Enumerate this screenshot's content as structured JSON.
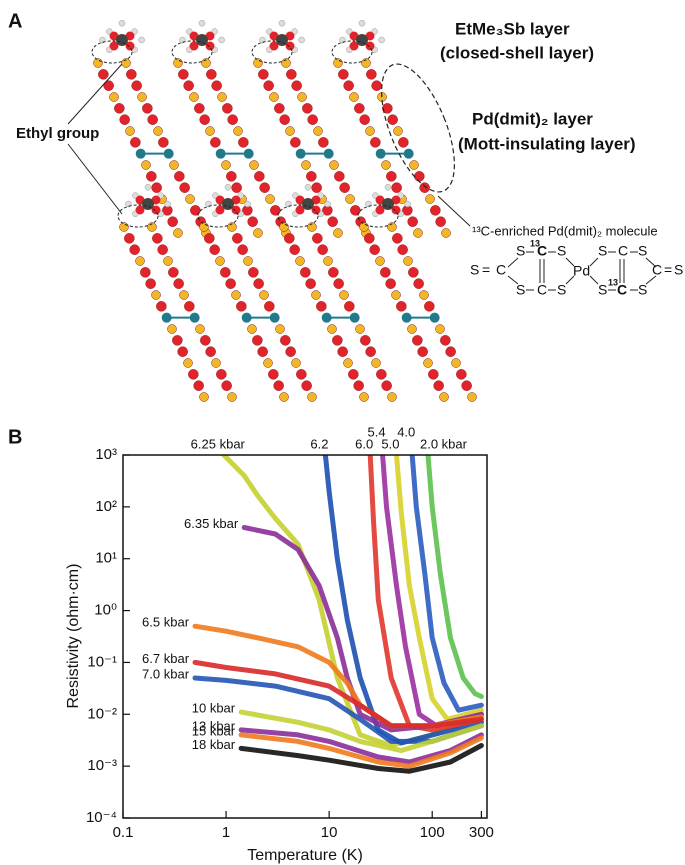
{
  "panel_a": {
    "label": "A",
    "cation_layer": "EtMe₃Sb layer",
    "cation_layer_note": "(closed-shell layer)",
    "anion_layer": "Pd(dmit)₂ layer",
    "anion_layer_note": "(Mott-insulating layer)",
    "ethyl_label": "Ethyl group",
    "molecule_caption": "¹³C-enriched Pd(dmit)₂ molecule",
    "molecule_atoms": [
      "S",
      "=",
      "C",
      "S",
      "13",
      "C",
      "S",
      "S",
      "C",
      "S",
      "Pd",
      "S",
      "C",
      "S",
      "S",
      "13",
      "C",
      "S",
      "C",
      "=",
      "S"
    ]
  },
  "chart_data": {
    "type": "line",
    "panel_label": "B",
    "x_label": "Temperature (K)",
    "y_label": "Resistivity (ohm·cm)",
    "log_x": true,
    "log_y": true,
    "xlim": [
      0.1,
      340
    ],
    "ylim": [
      0.0001,
      1000
    ],
    "xticks": [
      0.1,
      1,
      10,
      100,
      300
    ],
    "yticks": [
      {
        "value": 0.0001,
        "label": "10⁻⁴"
      },
      {
        "value": 0.001,
        "label": "10⁻³"
      },
      {
        "value": 0.01,
        "label": "10⁻²"
      },
      {
        "value": 0.1,
        "label": "10⁻¹"
      },
      {
        "value": 1,
        "label": "10⁰"
      },
      {
        "value": 10,
        "label": "10¹"
      },
      {
        "value": 100,
        "label": "10²"
      },
      {
        "value": 1000,
        "label": "10³"
      }
    ],
    "series": [
      {
        "name": "6.25 kbar",
        "color": "#c5cf2f",
        "x": [
          0.95,
          1.5,
          2,
          3,
          5,
          8,
          12,
          20,
          40,
          100,
          300
        ],
        "values": [
          1000,
          400,
          170,
          60,
          19,
          1.6,
          0.05,
          0.004,
          0.0025,
          0.004,
          0.009
        ]
      },
      {
        "name": "6.2",
        "color": "#1d4fb0",
        "x": [
          9.2,
          10,
          12,
          15,
          20,
          30,
          50,
          100,
          300
        ],
        "values": [
          1000,
          200,
          10,
          0.66,
          0.05,
          0.005,
          0.0028,
          0.004,
          0.007
        ]
      },
      {
        "name": "6.0",
        "color": "#e0362c",
        "x": [
          25,
          27,
          30,
          40,
          60,
          100,
          300
        ],
        "values": [
          1000,
          50,
          1.6,
          0.05,
          0.006,
          0.005,
          0.008
        ]
      },
      {
        "name": "5.4",
        "color": "#9b2f9f",
        "x": [
          33,
          36,
          45,
          55,
          75,
          110,
          300
        ],
        "values": [
          1000,
          100,
          3,
          0.2,
          0.01,
          0.006,
          0.01
        ]
      },
      {
        "name": "5.0",
        "color": "#d7d22a",
        "x": [
          45,
          50,
          60,
          75,
          100,
          140,
          300
        ],
        "values": [
          1000,
          80,
          3,
          0.3,
          0.02,
          0.008,
          0.012
        ]
      },
      {
        "name": "4.0",
        "color": "#2a5cc0",
        "x": [
          64,
          70,
          85,
          100,
          130,
          180,
          300
        ],
        "values": [
          1000,
          100,
          5,
          0.3,
          0.04,
          0.012,
          0.015
        ]
      },
      {
        "name": "2.0 kbar",
        "color": "#5cc24c",
        "x": [
          91,
          100,
          120,
          150,
          200,
          260,
          300
        ],
        "values": [
          1000,
          100,
          5,
          0.3,
          0.05,
          0.025,
          0.022
        ]
      },
      {
        "name": "6.35 kbar",
        "color": "#8b2d9a",
        "x": [
          1.5,
          3,
          5,
          8,
          12,
          15,
          20,
          40,
          100,
          300
        ],
        "values": [
          40,
          30,
          15,
          3,
          0.3,
          0.05,
          0.01,
          0.005,
          0.006,
          0.01
        ]
      },
      {
        "name": "6.5 kbar",
        "color": "#f07a1c",
        "x": [
          0.5,
          1,
          2,
          5,
          10,
          15,
          20,
          40,
          100,
          300
        ],
        "values": [
          0.5,
          0.4,
          0.3,
          0.2,
          0.1,
          0.04,
          0.015,
          0.006,
          0.006,
          0.009
        ]
      },
      {
        "name": "6.7 kbar",
        "color": "#d8282a",
        "x": [
          0.5,
          1,
          3,
          10,
          20,
          40,
          100,
          300
        ],
        "values": [
          0.1,
          0.08,
          0.06,
          0.035,
          0.015,
          0.006,
          0.006,
          0.008
        ]
      },
      {
        "name": "7.0 kbar",
        "color": "#2355b5",
        "x": [
          0.5,
          1,
          3,
          10,
          20,
          40,
          100,
          300
        ],
        "values": [
          0.05,
          0.045,
          0.035,
          0.02,
          0.008,
          0.003,
          0.003,
          0.006
        ]
      },
      {
        "name": "10 kbar",
        "color": "#c2d134",
        "x": [
          1.4,
          5,
          10,
          20,
          50,
          100,
          300
        ],
        "values": [
          0.011,
          0.007,
          0.005,
          0.003,
          0.002,
          0.003,
          0.006
        ]
      },
      {
        "name": "13 kbar",
        "color": "#8b2d9a",
        "x": [
          1.4,
          5,
          10,
          30,
          60,
          150,
          300
        ],
        "values": [
          0.005,
          0.004,
          0.003,
          0.0015,
          0.0012,
          0.002,
          0.004
        ]
      },
      {
        "name": "15 kbar",
        "color": "#f07a1c",
        "x": [
          1.4,
          5,
          10,
          30,
          60,
          150,
          300
        ],
        "values": [
          0.004,
          0.003,
          0.0022,
          0.0012,
          0.001,
          0.0018,
          0.0035
        ]
      },
      {
        "name": "18 kbar",
        "color": "#111111",
        "x": [
          1.4,
          5,
          10,
          30,
          60,
          150,
          300
        ],
        "values": [
          0.0022,
          0.0016,
          0.0013,
          0.0009,
          0.0008,
          0.0012,
          0.0025
        ]
      }
    ]
  }
}
